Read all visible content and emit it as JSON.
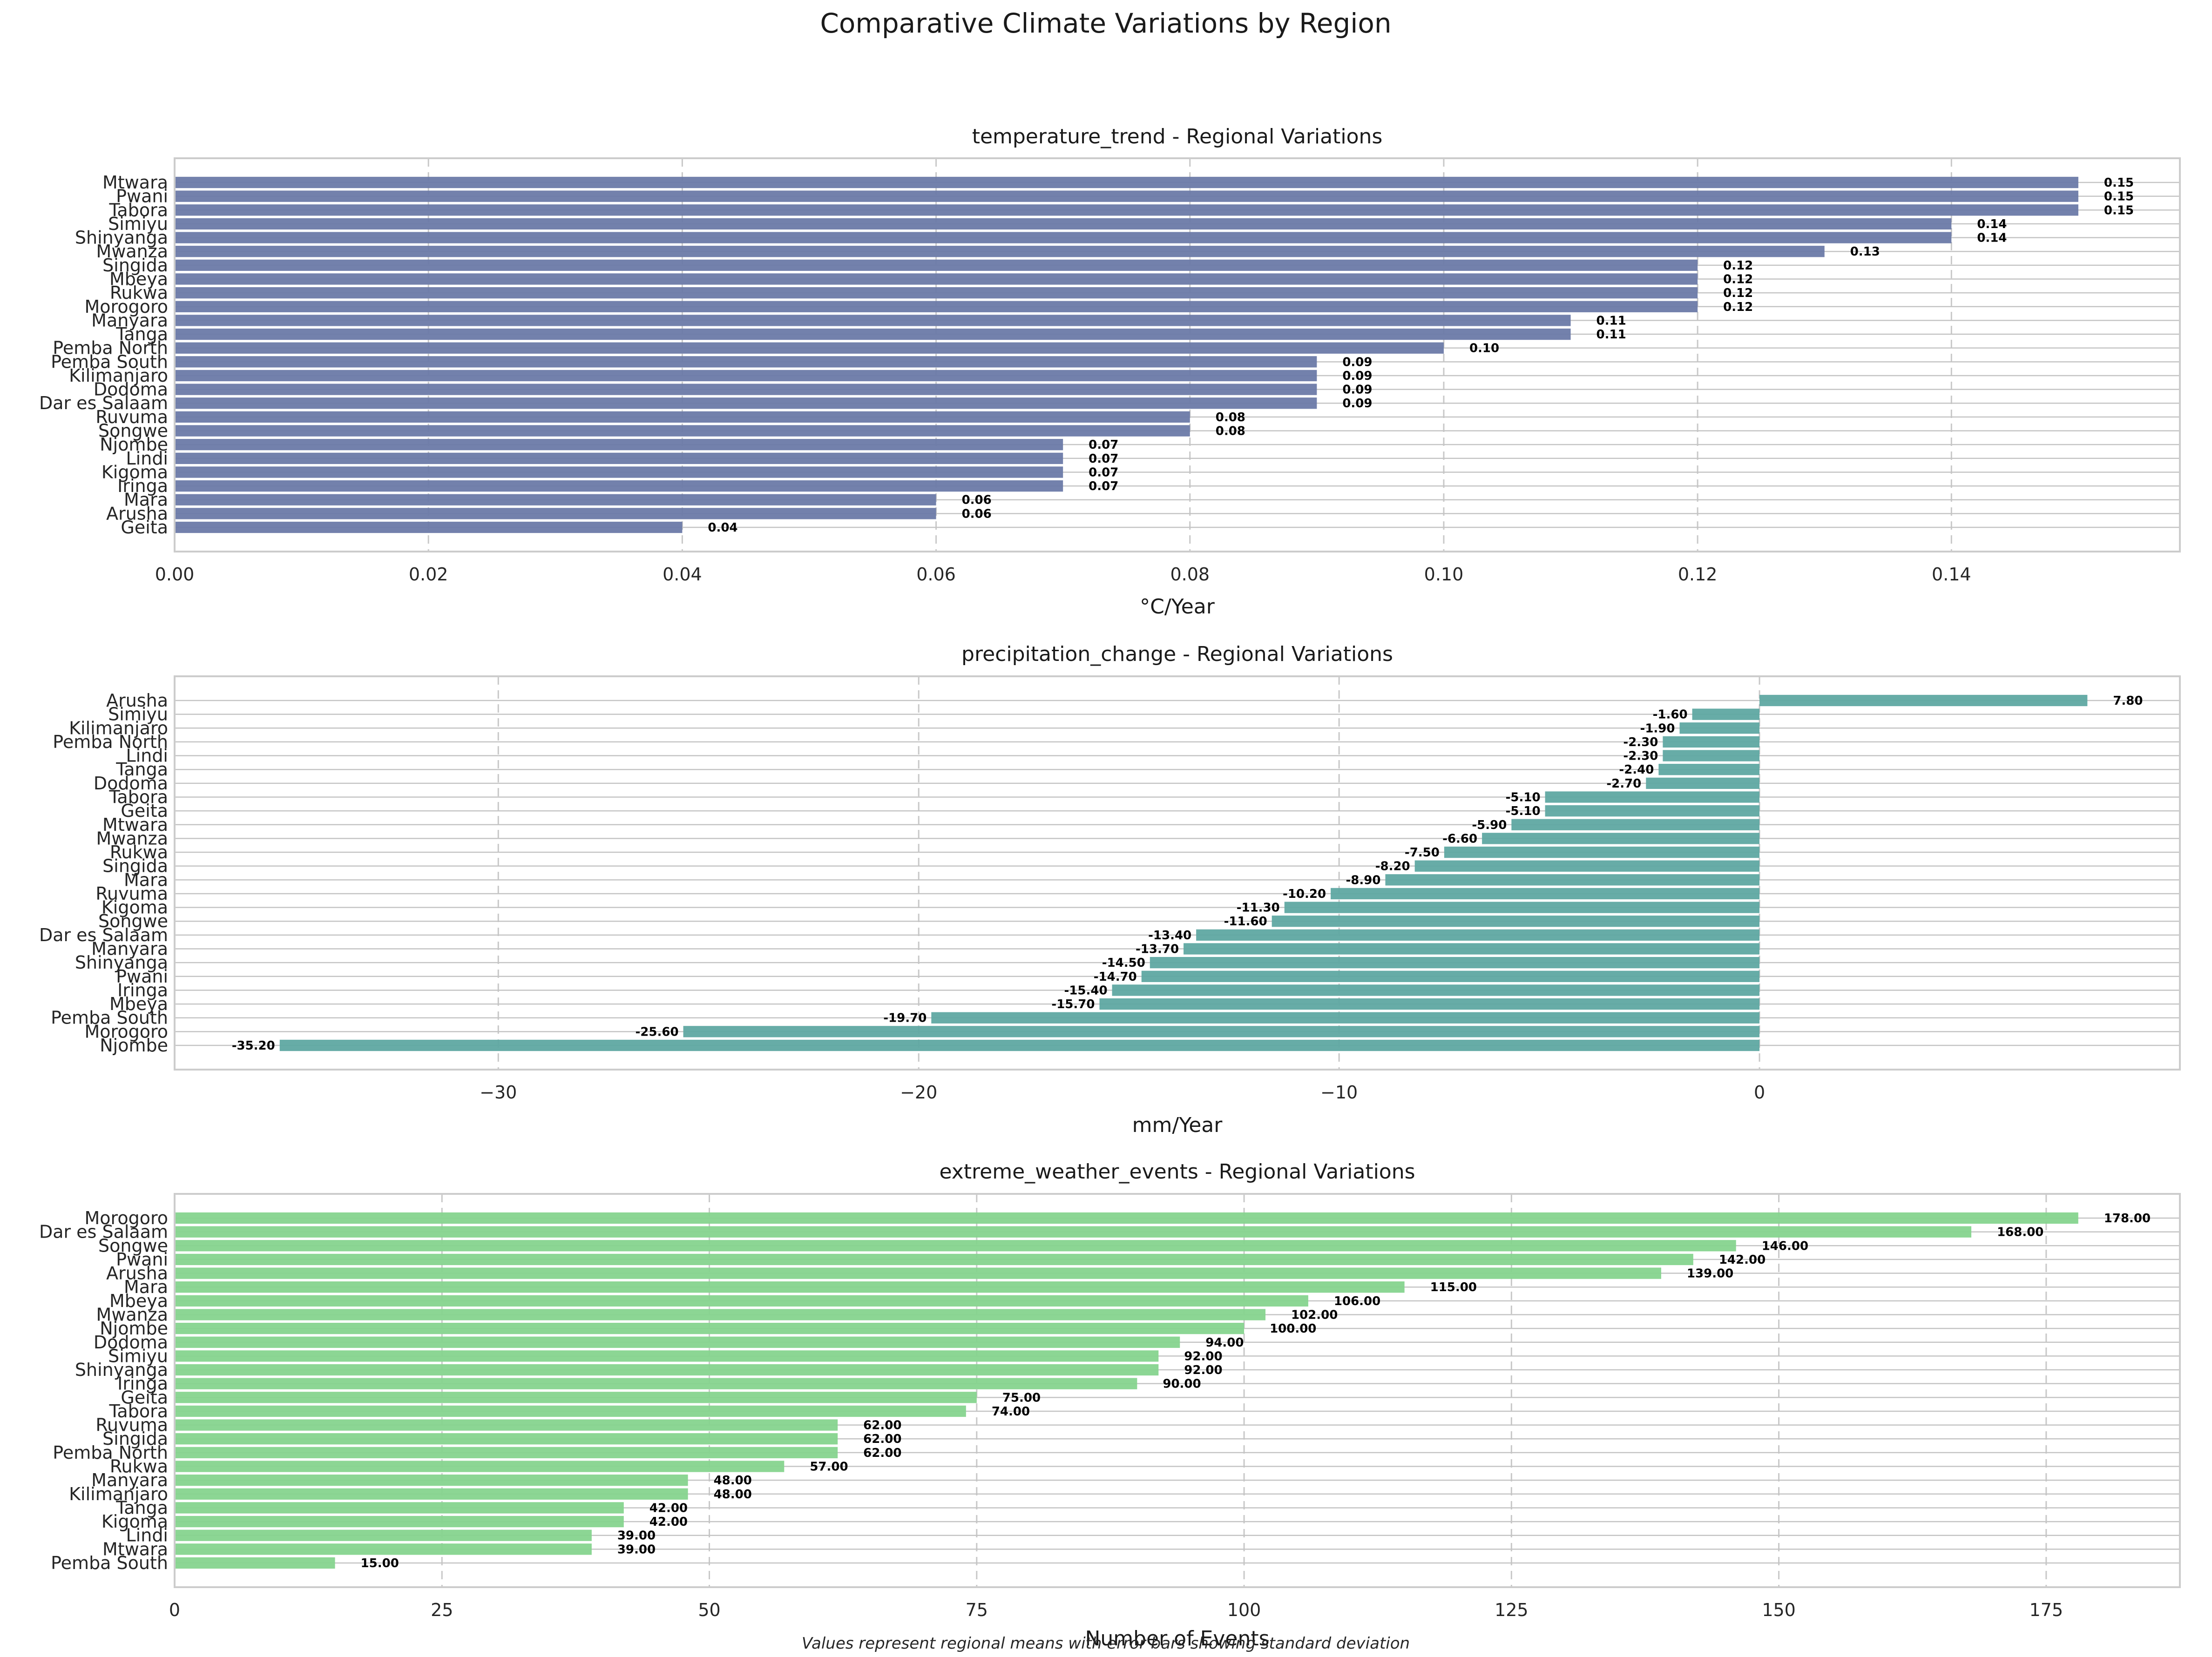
{
  "figure": {
    "title": "Comparative Climate Variations by Region",
    "footnote": "Values represent regional means with error bars showing standard deviation"
  },
  "chart_data": [
    {
      "type": "bar",
      "orientation": "horizontal",
      "title": "temperature_trend - Regional Variations",
      "xlabel": "°C/Year",
      "ylabel": "",
      "color": "#6b7aa8",
      "xlim": [
        0,
        0.158
      ],
      "xticks": [
        0.0,
        0.02,
        0.04,
        0.06,
        0.08,
        0.1,
        0.12,
        0.14
      ],
      "tick_decimals": 2,
      "label_decimals": 2,
      "grid": true,
      "categories": [
        "Mtwara",
        "Pwani",
        "Tabora",
        "Simiyu",
        "Shinyanga",
        "Mwanza",
        "Singida",
        "Mbeya",
        "Rukwa",
        "Morogoro",
        "Manyara",
        "Tanga",
        "Pemba North",
        "Pemba South",
        "Kilimanjaro",
        "Dodoma",
        "Dar es Salaam",
        "Ruvuma",
        "Songwe",
        "Njombe",
        "Lindi",
        "Kigoma",
        "Iringa",
        "Mara",
        "Arusha",
        "Geita"
      ],
      "values": [
        0.15,
        0.15,
        0.15,
        0.14,
        0.14,
        0.13,
        0.12,
        0.12,
        0.12,
        0.12,
        0.11,
        0.11,
        0.1,
        0.09,
        0.09,
        0.09,
        0.09,
        0.08,
        0.08,
        0.07,
        0.07,
        0.07,
        0.07,
        0.06,
        0.06,
        0.04
      ]
    },
    {
      "type": "bar",
      "orientation": "horizontal",
      "title": "precipitation_change - Regional Variations",
      "xlabel": "mm/Year",
      "ylabel": "",
      "color": "#5fa8a2",
      "xlim": [
        -37.7,
        10.0
      ],
      "xticks": [
        -30,
        -20,
        -10,
        0
      ],
      "tick_decimals": 0,
      "label_decimals": 2,
      "grid": true,
      "categories": [
        "Arusha",
        "Simiyu",
        "Kilimanjaro",
        "Pemba North",
        "Lindi",
        "Tanga",
        "Dodoma",
        "Tabora",
        "Geita",
        "Mtwara",
        "Mwanza",
        "Rukwa",
        "Singida",
        "Mara",
        "Ruvuma",
        "Kigoma",
        "Songwe",
        "Dar es Salaam",
        "Manyara",
        "Shinyanga",
        "Pwani",
        "Iringa",
        "Mbeya",
        "Pemba South",
        "Morogoro",
        "Njombe"
      ],
      "values": [
        7.8,
        -1.6,
        -1.9,
        -2.3,
        -2.3,
        -2.4,
        -2.7,
        -5.1,
        -5.1,
        -5.9,
        -6.6,
        -7.5,
        -8.2,
        -8.9,
        -10.2,
        -11.3,
        -11.6,
        -13.4,
        -13.7,
        -14.5,
        -14.7,
        -15.4,
        -15.7,
        -19.7,
        -25.6,
        -35.2
      ]
    },
    {
      "type": "bar",
      "orientation": "horizontal",
      "title": "extreme_weather_events - Regional Variations",
      "xlabel": "Number of Events",
      "ylabel": "",
      "color": "#86d48e",
      "xlim": [
        0,
        187.5
      ],
      "xticks": [
        0,
        25,
        50,
        75,
        100,
        125,
        150,
        175
      ],
      "tick_decimals": 0,
      "label_decimals": 2,
      "grid": true,
      "categories": [
        "Morogoro",
        "Dar es Salaam",
        "Songwe",
        "Pwani",
        "Arusha",
        "Mara",
        "Mbeya",
        "Mwanza",
        "Njombe",
        "Dodoma",
        "Simiyu",
        "Shinyanga",
        "Iringa",
        "Geita",
        "Tabora",
        "Ruvuma",
        "Singida",
        "Pemba North",
        "Rukwa",
        "Manyara",
        "Kilimanjaro",
        "Tanga",
        "Kigoma",
        "Lindi",
        "Mtwara",
        "Pemba South"
      ],
      "values": [
        178,
        168,
        146,
        142,
        139,
        115,
        106,
        102,
        100,
        94,
        92,
        92,
        90,
        75,
        74,
        62,
        62,
        62,
        57,
        48,
        48,
        42,
        42,
        39,
        39,
        15
      ]
    }
  ]
}
